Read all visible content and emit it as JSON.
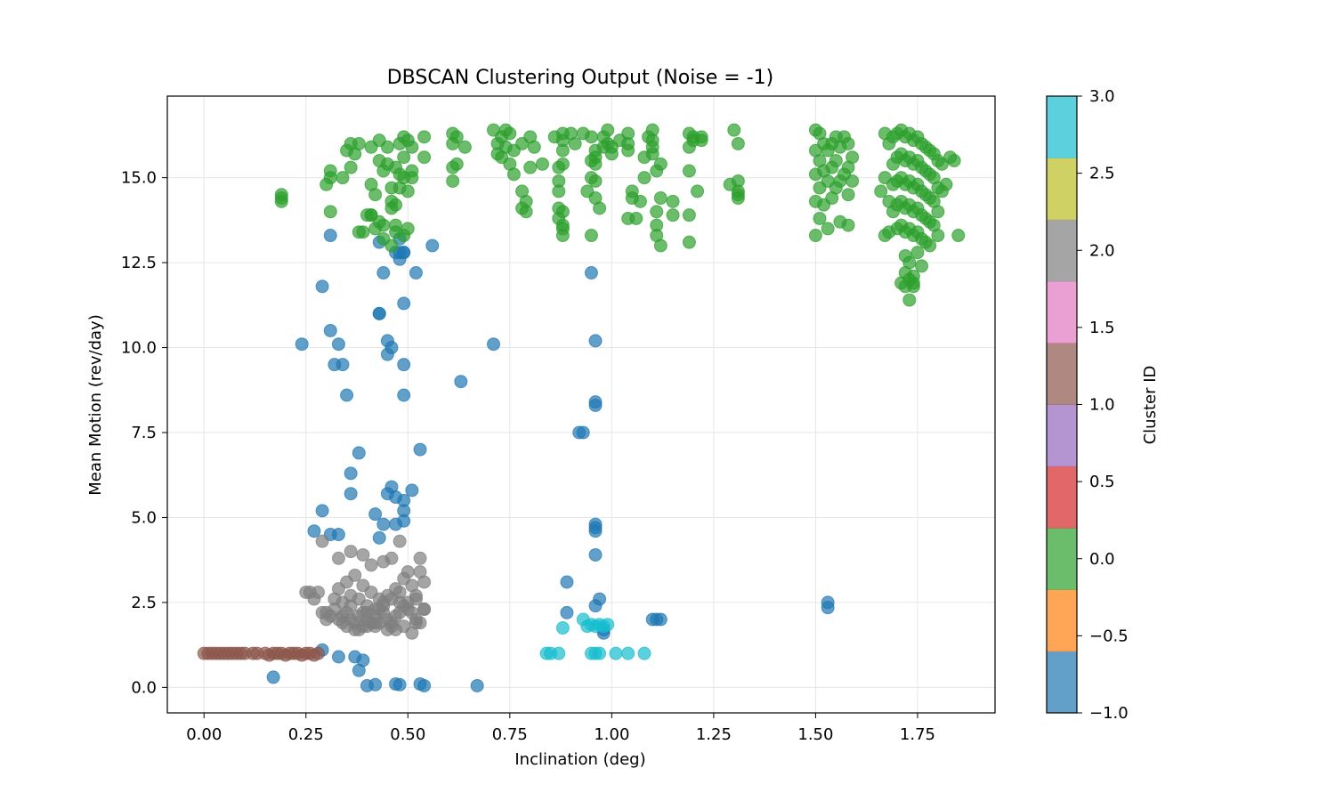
{
  "chart_data": {
    "type": "scatter",
    "title": "DBSCAN Clustering Output (Noise = -1)",
    "xlabel": "Inclination (deg)",
    "ylabel": "Mean Motion (rev/day)",
    "xlim": [
      -0.09,
      1.94
    ],
    "ylim": [
      -0.75,
      17.4
    ],
    "xticks": [
      0.0,
      0.25,
      0.5,
      0.75,
      1.0,
      1.25,
      1.5,
      1.75
    ],
    "xtick_labels": [
      "0.00",
      "0.25",
      "0.50",
      "0.75",
      "1.00",
      "1.25",
      "1.50",
      "1.75"
    ],
    "yticks": [
      0.0,
      2.5,
      5.0,
      7.5,
      10.0,
      12.5,
      15.0
    ],
    "ytick_labels": [
      "0.0",
      "2.5",
      "5.0",
      "7.5",
      "10.0",
      "12.5",
      "15.0"
    ],
    "grid": true,
    "marker_alpha": 0.7,
    "colorbar": {
      "label": "Cluster ID",
      "range": [
        -1.0,
        3.0
      ],
      "ticks": [
        -1.0,
        -0.5,
        0.0,
        0.5,
        1.0,
        1.5,
        2.0,
        2.5,
        3.0
      ],
      "tick_labels": [
        "−1.0",
        "−0.5",
        "0.0",
        "0.5",
        "1.0",
        "1.5",
        "2.0",
        "2.5",
        "3.0"
      ],
      "colors": [
        "#1f77b4",
        "#ff7f0e",
        "#2ca02c",
        "#d62728",
        "#9467bd",
        "#8c564b",
        "#e377c2",
        "#7f7f7f",
        "#bcbd22",
        "#17becf"
      ]
    },
    "series": [
      {
        "cluster": -1,
        "color": "#1f77b4",
        "x": [
          0.31,
          0.29,
          0.24,
          0.31,
          0.33,
          0.32,
          0.34,
          0.35,
          0.43,
          0.43,
          0.45,
          0.45,
          0.46,
          0.47,
          0.49,
          0.48,
          0.49,
          0.49,
          0.49,
          0.52,
          0.56,
          0.43,
          0.44,
          0.48,
          0.49,
          0.48,
          0.71,
          0.63,
          0.95,
          0.96,
          0.96,
          0.96,
          0.92,
          0.93,
          0.96,
          0.96,
          0.96,
          0.96,
          0.89,
          0.97,
          0.96,
          0.89,
          0.98,
          0.98,
          1.1,
          1.12,
          1.11,
          1.53,
          1.53,
          0.38,
          0.36,
          0.36,
          0.46,
          0.45,
          0.47,
          0.49,
          0.49,
          0.51,
          0.53,
          0.29,
          0.27,
          0.31,
          0.33,
          0.42,
          0.44,
          0.43,
          0.49,
          0.47,
          0.33,
          0.29,
          0.38,
          0.39,
          0.37,
          0.4,
          0.42,
          0.47,
          0.48,
          0.53,
          0.54,
          0.67,
          0.17
        ],
        "y": [
          13.3,
          11.8,
          10.1,
          10.5,
          10.1,
          9.5,
          9.5,
          8.6,
          11.0,
          11.0,
          10.2,
          9.8,
          10.0,
          12.8,
          12.8,
          12.6,
          11.3,
          9.5,
          8.6,
          12.2,
          13.0,
          13.1,
          12.2,
          12.8,
          12.8,
          13.2,
          10.1,
          9.0,
          12.2,
          10.2,
          8.4,
          8.3,
          7.5,
          7.5,
          4.8,
          4.7,
          4.6,
          3.9,
          3.1,
          2.6,
          2.4,
          2.2,
          1.6,
          1.7,
          2.0,
          2.0,
          2.0,
          2.5,
          2.35,
          6.9,
          6.3,
          5.7,
          5.9,
          5.7,
          5.6,
          5.5,
          5.2,
          5.8,
          7.0,
          5.2,
          4.6,
          4.5,
          4.5,
          5.1,
          4.8,
          4.4,
          4.9,
          4.8,
          0.9,
          1.1,
          0.5,
          0.8,
          0.9,
          0.05,
          0.08,
          0.1,
          0.08,
          0.1,
          0.05,
          0.05,
          0.3
        ]
      },
      {
        "cluster": 0,
        "color": "#2ca02c",
        "x": [
          0.19,
          0.19,
          0.19,
          0.31,
          0.3,
          0.31,
          0.34,
          0.35,
          0.36,
          0.36,
          0.37,
          0.38,
          0.39,
          0.41,
          0.41,
          0.41,
          0.42,
          0.43,
          0.43,
          0.44,
          0.45,
          0.45,
          0.46,
          0.46,
          0.47,
          0.48,
          0.48,
          0.49,
          0.49,
          0.5,
          0.51,
          0.51,
          0.47,
          0.48,
          0.49,
          0.5,
          0.51,
          0.41,
          0.42,
          0.44,
          0.47,
          0.49,
          0.43,
          0.44,
          0.46,
          0.46,
          0.47,
          0.5,
          0.38,
          0.4,
          0.31,
          0.54,
          0.54,
          0.61,
          0.61,
          0.61,
          0.61,
          0.62,
          0.62,
          0.64,
          0.71,
          0.72,
          0.72,
          0.73,
          0.73,
          0.74,
          0.74,
          0.75,
          0.75,
          0.76,
          0.76,
          0.78,
          0.78,
          0.78,
          0.79,
          0.79,
          0.8,
          0.8,
          0.81,
          0.83,
          0.86,
          0.87,
          0.87,
          0.87,
          0.87,
          0.87,
          0.88,
          0.88,
          0.88,
          0.88,
          0.88,
          0.88,
          0.88,
          0.88,
          0.9,
          0.91,
          0.93,
          0.94,
          0.95,
          0.95,
          0.95,
          0.95,
          0.96,
          0.96,
          0.96,
          0.96,
          0.96,
          0.97,
          0.98,
          0.98,
          0.99,
          0.99,
          1.0,
          1.0,
          1.02,
          1.04,
          1.04,
          1.04,
          1.04,
          1.05,
          1.05,
          1.06,
          1.07,
          1.08,
          1.08,
          1.09,
          1.1,
          1.1,
          1.1,
          1.1,
          1.11,
          1.11,
          1.11,
          1.11,
          1.12,
          1.12,
          1.12,
          1.19,
          1.19,
          1.19,
          1.2,
          1.2,
          1.21,
          1.22,
          1.22,
          1.15,
          1.15,
          1.19,
          1.19,
          1.29,
          1.3,
          1.31,
          1.31,
          1.31,
          1.31,
          1.31,
          1.5,
          1.5,
          1.5,
          1.5,
          1.5,
          1.51,
          1.51,
          1.51,
          1.51,
          1.52,
          1.52,
          1.52,
          1.53,
          1.53,
          1.53,
          1.54,
          1.54,
          1.54,
          1.55,
          1.55,
          1.55,
          1.56,
          1.56,
          1.56,
          1.57,
          1.57,
          1.58,
          1.58,
          1.58,
          1.58,
          1.59,
          1.59,
          1.66,
          1.67,
          1.67,
          1.67,
          1.68,
          1.68,
          1.68,
          1.69,
          1.69,
          1.69,
          1.69,
          1.7,
          1.7,
          1.7,
          1.7,
          1.7,
          1.71,
          1.71,
          1.71,
          1.71,
          1.71,
          1.72,
          1.72,
          1.72,
          1.72,
          1.72,
          1.72,
          1.73,
          1.73,
          1.73,
          1.73,
          1.73,
          1.73,
          1.74,
          1.74,
          1.74,
          1.74,
          1.74,
          1.74,
          1.75,
          1.75,
          1.75,
          1.75,
          1.75,
          1.75,
          1.76,
          1.76,
          1.76,
          1.76,
          1.76,
          1.76,
          1.77,
          1.77,
          1.77,
          1.77,
          1.77,
          1.78,
          1.78,
          1.78,
          1.78,
          1.78,
          1.79,
          1.79,
          1.79,
          1.79,
          1.8,
          1.8,
          1.8,
          1.8,
          1.81,
          1.81,
          1.82,
          1.83,
          1.84,
          1.85,
          1.72,
          1.73,
          1.73,
          1.74,
          1.71,
          1.72,
          1.74
        ],
        "y": [
          14.5,
          14.3,
          14.4,
          15.2,
          14.8,
          14.0,
          15.0,
          15.8,
          16.0,
          15.3,
          15.7,
          16.0,
          13.4,
          15.9,
          14.8,
          13.9,
          14.5,
          16.1,
          15.5,
          15.2,
          15.9,
          15.4,
          14.7,
          14.1,
          14.2,
          16.0,
          15.1,
          16.2,
          15.6,
          16.1,
          15.9,
          15.2,
          15.3,
          14.7,
          15.0,
          14.6,
          15.0,
          13.9,
          13.5,
          13.6,
          13.4,
          13.3,
          13.7,
          13.2,
          14.3,
          13.0,
          13.6,
          13.5,
          13.4,
          13.9,
          15.0,
          16.2,
          15.6,
          16.3,
          16.0,
          15.3,
          14.9,
          15.4,
          16.2,
          15.9,
          16.4,
          16.0,
          15.7,
          16.2,
          15.6,
          16.4,
          15.9,
          16.3,
          15.4,
          15.1,
          15.8,
          16.0,
          14.6,
          14.1,
          14.0,
          14.3,
          16.2,
          15.3,
          15.9,
          15.4,
          16.2,
          15.3,
          14.9,
          14.6,
          14.1,
          13.8,
          13.5,
          13.3,
          16.3,
          15.8,
          15.4,
          14.0,
          13.6,
          16.1,
          16.3,
          16.0,
          16.3,
          14.6,
          16.2,
          15.5,
          15.0,
          13.3,
          15.6,
          15.4,
          15.8,
          14.4,
          14.9,
          14.1,
          16.2,
          15.9,
          16.4,
          16.0,
          15.9,
          15.7,
          16.1,
          16.3,
          16.0,
          15.8,
          13.8,
          14.4,
          14.6,
          13.8,
          14.3,
          15.0,
          15.6,
          16.2,
          16.4,
          16.1,
          15.9,
          15.7,
          15.2,
          14.0,
          13.6,
          13.3,
          13.0,
          14.4,
          15.4,
          15.2,
          16.3,
          15.9,
          16.1,
          16.2,
          14.6,
          16.2,
          16.1,
          14.3,
          13.9,
          13.9,
          13.1,
          14.8,
          16.4,
          16.0,
          14.9,
          14.4,
          14.5,
          14.6,
          16.4,
          15.8,
          15.1,
          14.3,
          13.3,
          16.3,
          15.5,
          14.7,
          13.8,
          16.0,
          15.2,
          14.2,
          15.8,
          14.9,
          13.5,
          16.0,
          15.3,
          14.4,
          16.2,
          15.5,
          14.7,
          15.9,
          14.9,
          13.7,
          16.2,
          15.1,
          16.0,
          15.3,
          14.5,
          13.6,
          15.6,
          14.9,
          14.6,
          16.3,
          15.0,
          13.3,
          16.0,
          14.3,
          13.4,
          16.2,
          15.4,
          14.8,
          14.0,
          16.3,
          15.6,
          14.9,
          14.2,
          13.5,
          16.4,
          15.7,
          15.0,
          14.3,
          13.6,
          16.2,
          15.5,
          14.8,
          14.1,
          13.4,
          12.7,
          16.3,
          15.6,
          14.9,
          14.2,
          13.5,
          12.5,
          16.1,
          15.4,
          14.7,
          14.0,
          13.3,
          12.1,
          16.2,
          15.5,
          14.8,
          14.1,
          13.4,
          12.8,
          16.0,
          15.3,
          14.6,
          13.9,
          13.2,
          12.4,
          15.9,
          15.2,
          14.5,
          13.8,
          13.1,
          15.8,
          15.1,
          14.4,
          13.7,
          13.0,
          15.7,
          15.0,
          14.3,
          13.6,
          15.5,
          14.7,
          14.0,
          13.3,
          15.4,
          14.6,
          14.8,
          15.6,
          15.5,
          13.3,
          11.8,
          12.0,
          11.4,
          11.9,
          11.9,
          12.2,
          11.8
        ]
      },
      {
        "cluster": 1,
        "color": "#8c564b",
        "x": [
          0.0,
          0.01,
          0.02,
          0.03,
          0.04,
          0.05,
          0.06,
          0.07,
          0.08,
          0.09,
          0.1,
          0.12,
          0.13,
          0.15,
          0.16,
          0.17,
          0.18,
          0.19,
          0.2,
          0.21,
          0.22,
          0.23,
          0.24,
          0.25,
          0.26,
          0.27,
          0.28
        ],
        "y": [
          1.0,
          1.0,
          1.0,
          1.0,
          1.0,
          1.0,
          1.0,
          1.0,
          1.0,
          1.0,
          1.0,
          1.0,
          1.0,
          1.0,
          0.95,
          1.0,
          1.0,
          1.0,
          0.95,
          1.0,
          1.0,
          1.0,
          0.95,
          1.0,
          1.0,
          0.95,
          1.0
        ]
      },
      {
        "cluster": 2,
        "color": "#7f7f7f",
        "x": [
          0.29,
          0.3,
          0.31,
          0.32,
          0.33,
          0.34,
          0.35,
          0.36,
          0.37,
          0.38,
          0.39,
          0.4,
          0.41,
          0.42,
          0.43,
          0.44,
          0.45,
          0.46,
          0.47,
          0.48,
          0.49,
          0.5,
          0.51,
          0.52,
          0.53,
          0.54,
          0.33,
          0.35,
          0.37,
          0.39,
          0.41,
          0.43,
          0.45,
          0.47,
          0.49,
          0.51,
          0.53,
          0.34,
          0.36,
          0.38,
          0.4,
          0.42,
          0.44,
          0.46,
          0.48,
          0.5,
          0.52,
          0.54,
          0.32,
          0.36,
          0.4,
          0.44,
          0.48,
          0.52,
          0.26,
          0.28,
          0.27,
          0.25,
          0.29,
          0.33,
          0.36,
          0.39,
          0.41,
          0.44,
          0.46,
          0.48,
          0.5,
          0.53,
          0.54,
          0.35,
          0.38,
          0.42,
          0.47,
          0.51,
          0.37,
          0.4,
          0.43,
          0.45,
          0.49,
          0.52,
          0.3,
          0.34,
          0.39,
          0.42,
          0.46
        ],
        "y": [
          4.3,
          2.2,
          2.1,
          2.3,
          2.0,
          2.1,
          2.2,
          2.0,
          1.9,
          2.1,
          2.2,
          2.0,
          1.9,
          2.1,
          2.3,
          2.2,
          2.0,
          1.9,
          2.1,
          2.2,
          2.4,
          2.3,
          2.2,
          2.0,
          1.9,
          2.3,
          2.9,
          3.1,
          3.3,
          3.0,
          2.8,
          2.6,
          2.7,
          2.9,
          3.2,
          3.0,
          3.4,
          2.5,
          2.7,
          2.6,
          2.4,
          2.3,
          2.5,
          2.6,
          2.8,
          2.5,
          2.7,
          2.3,
          2.6,
          2.4,
          2.2,
          2.4,
          2.5,
          2.6,
          2.8,
          2.8,
          2.6,
          2.8,
          2.2,
          3.8,
          4.0,
          3.9,
          3.6,
          3.7,
          3.8,
          4.3,
          3.4,
          3.8,
          3.1,
          1.8,
          1.7,
          1.8,
          1.7,
          1.6,
          1.7,
          1.8,
          1.9,
          1.7,
          1.8,
          1.9,
          2.0,
          1.9,
          1.8,
          1.9,
          1.8
        ]
      },
      {
        "cluster": 3,
        "color": "#17becf",
        "x": [
          0.84,
          0.85,
          0.87,
          0.88,
          0.93,
          0.94,
          0.95,
          0.96,
          0.97,
          0.98,
          0.99,
          0.95,
          0.96,
          0.97,
          1.01,
          1.04,
          1.08
        ],
        "y": [
          1.0,
          1.0,
          1.0,
          1.75,
          2.0,
          1.8,
          1.85,
          1.8,
          1.85,
          1.8,
          1.85,
          1.0,
          1.0,
          1.0,
          1.0,
          1.0,
          1.0
        ]
      }
    ]
  }
}
